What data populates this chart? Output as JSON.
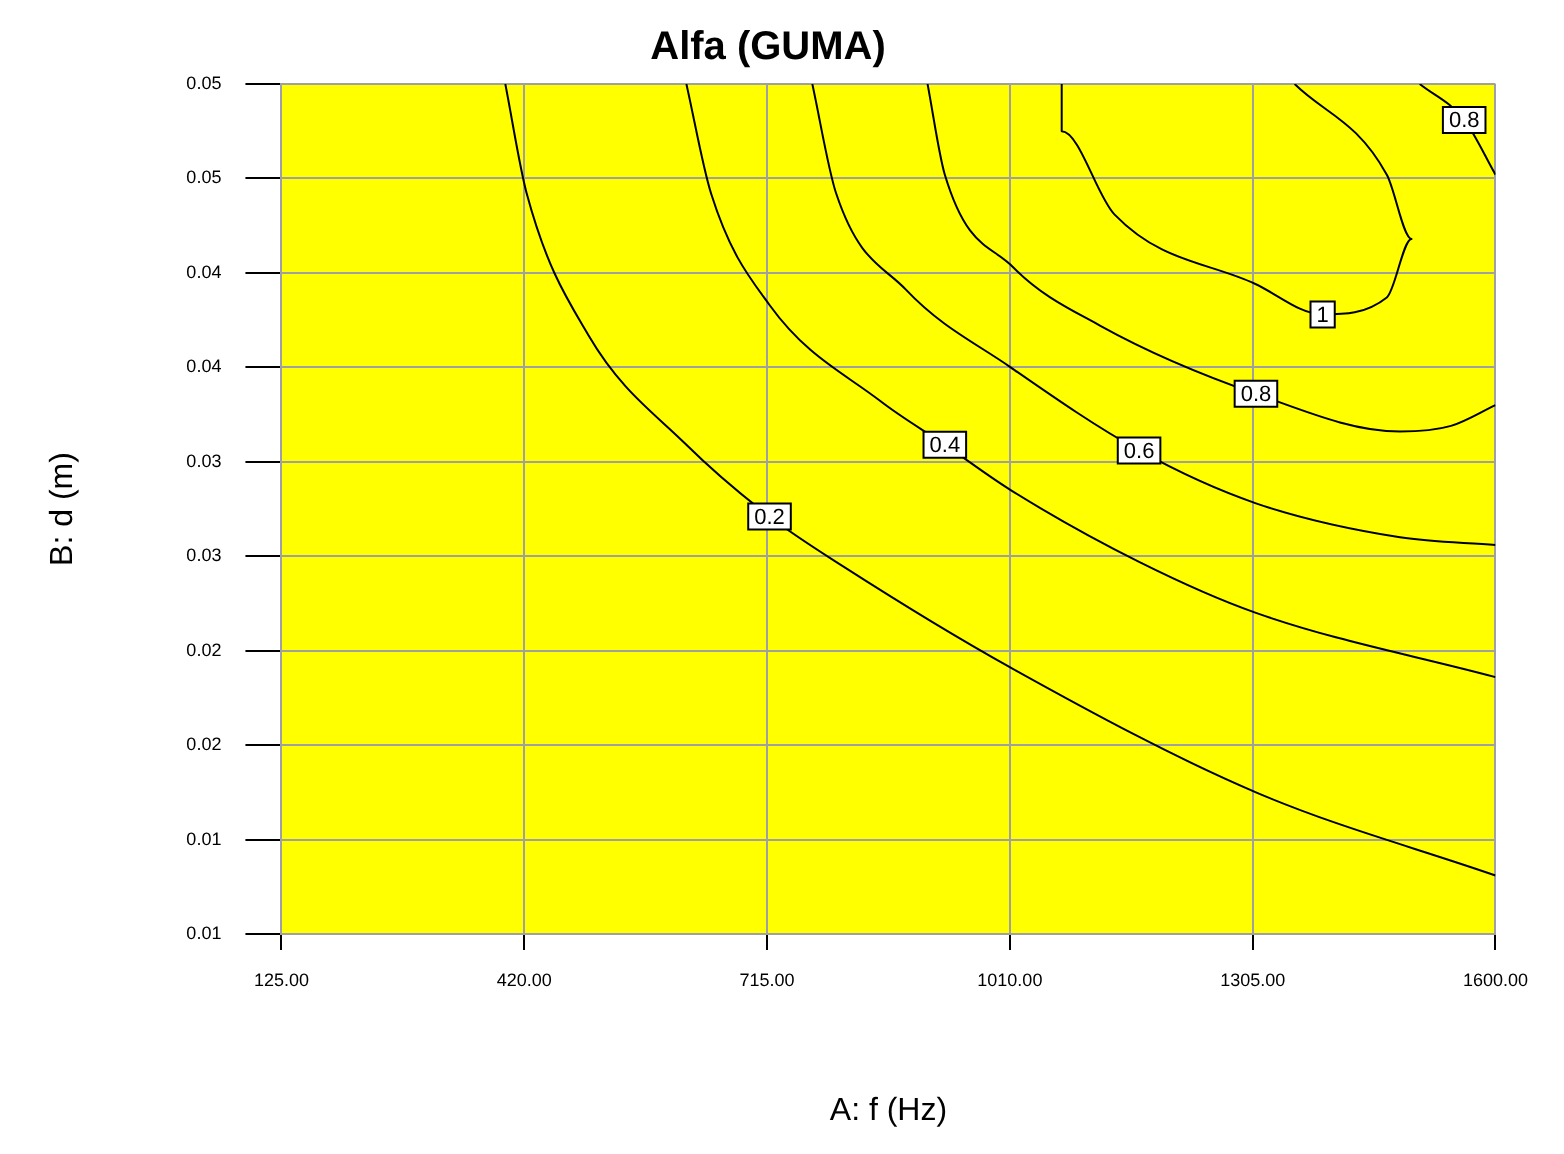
{
  "chart_data": {
    "type": "line",
    "title": "Alfa (GUMA)",
    "xlabel": "A: f (Hz)",
    "ylabel": "B: d (m)",
    "xlim": [
      125,
      1600
    ],
    "xticks": [
      {
        "value": 125,
        "label": "125.00"
      },
      {
        "value": 420,
        "label": "420.00"
      },
      {
        "value": 715,
        "label": "715.00"
      },
      {
        "value": 1010,
        "label": "1010.00"
      },
      {
        "value": 1305,
        "label": "1305.00"
      },
      {
        "value": 1600,
        "label": "1600.00"
      }
    ],
    "ylim": [
      0.01,
      0.055
    ],
    "yticks": [
      {
        "value": 0.01,
        "label": "0.01"
      },
      {
        "value": 0.015,
        "label": "0.01"
      },
      {
        "value": 0.02,
        "label": "0.02"
      },
      {
        "value": 0.025,
        "label": "0.02"
      },
      {
        "value": 0.03,
        "label": "0.03"
      },
      {
        "value": 0.035,
        "label": "0.03"
      },
      {
        "value": 0.04,
        "label": "0.04"
      },
      {
        "value": 0.045,
        "label": "0.04"
      },
      {
        "value": 0.05,
        "label": "0.05"
      },
      {
        "value": 0.055,
        "label": "0.05"
      }
    ],
    "grid": true,
    "legend": false,
    "marker": "none",
    "line_style": "solid",
    "series": [
      {
        "name": "0.2",
        "color": "#000000",
        "x": [
          397,
          423,
          498,
          617,
          718,
          806,
          1011,
          1309,
          1600
        ],
        "values": [
          0.055,
          0.0492,
          0.0417,
          0.0359,
          0.0321,
          0.0295,
          0.0241,
          0.0175,
          0.0131
        ]
      },
      {
        "name": "0.4",
        "color": "#000000",
        "x": [
          617,
          647,
          718,
          853,
          931,
          1011,
          1167,
          1309,
          1600
        ],
        "values": [
          0.055,
          0.0492,
          0.0433,
          0.0382,
          0.0359,
          0.0335,
          0.0297,
          0.027,
          0.0236
        ]
      },
      {
        "name": "0.6",
        "color": "#000000",
        "x": [
          770,
          799,
          884,
          1011,
          1167,
          1309,
          1484,
          1600
        ],
        "values": [
          0.055,
          0.0492,
          0.0441,
          0.04,
          0.0356,
          0.0328,
          0.031,
          0.0306
        ]
      },
      {
        "name": "0.8",
        "color": "#000000",
        "x": [
          910,
          931,
          1014,
          1120,
          1309,
          1484,
          1546,
          1600
        ],
        "values": [
          0.055,
          0.0502,
          0.0453,
          0.0422,
          0.0386,
          0.0366,
          0.0369,
          0.038
        ]
      },
      {
        "name": "1",
        "color": "#000000",
        "x": [
          1073,
          1073,
          1137,
          1309,
          1390,
          1468,
          1498,
          1468,
          1356
        ],
        "values": [
          0.055,
          0.0525,
          0.0481,
          0.0444,
          0.0428,
          0.0437,
          0.0468,
          0.0502,
          0.055
        ]
      },
      {
        "name": "0.8",
        "color": "#000000",
        "x": [
          1508,
          1562,
          1600
        ],
        "values": [
          0.055,
          0.0531,
          0.0502
        ]
      }
    ]
  }
}
